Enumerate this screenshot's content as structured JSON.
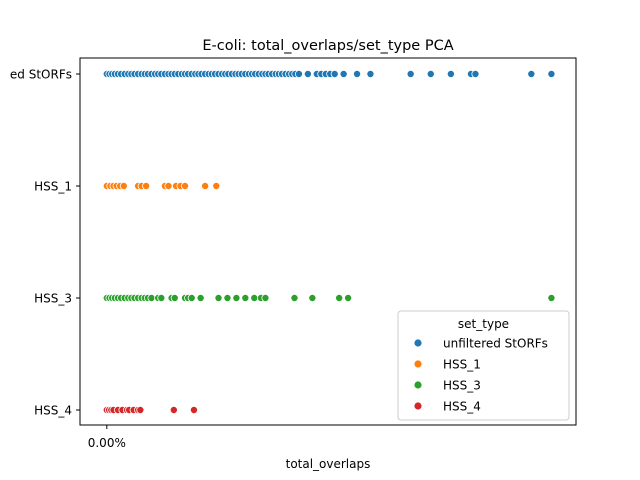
{
  "chart_data": {
    "type": "scatter",
    "title": "E-coli: total_overlaps/set_type PCA",
    "xlabel": "total_overlaps",
    "ylabel": "",
    "x_tick_labels": [
      "0.00%"
    ],
    "y_categories": [
      "unfiltered StORFs",
      "HSS_1",
      "HSS_3",
      "HSS_4"
    ],
    "y_tick_labels": [
      "ed StORFs",
      "HSS_1",
      "HSS_3",
      "HSS_4"
    ],
    "xlim": [
      -0.06,
      1.05
    ],
    "grid": false,
    "legend": {
      "title": "set_type",
      "placement": "lower right",
      "entries": [
        "unfiltered StORFs",
        "HSS_1",
        "HSS_3",
        "HSS_4"
      ]
    },
    "colors": {
      "unfiltered StORFs": "#1f77b4",
      "HSS_1": "#ff7f0e",
      "HSS_3": "#2ca02c",
      "HSS_4": "#d62728"
    },
    "series": [
      {
        "name": "unfiltered StORFs",
        "y": "unfiltered StORFs",
        "x": [
          0.0,
          0.006,
          0.012,
          0.018,
          0.025,
          0.032,
          0.04,
          0.048,
          0.055,
          0.062,
          0.07,
          0.078,
          0.085,
          0.092,
          0.1,
          0.108,
          0.115,
          0.122,
          0.13,
          0.138,
          0.145,
          0.152,
          0.16,
          0.168,
          0.175,
          0.182,
          0.19,
          0.198,
          0.205,
          0.212,
          0.22,
          0.228,
          0.235,
          0.242,
          0.25,
          0.258,
          0.265,
          0.272,
          0.28,
          0.288,
          0.295,
          0.302,
          0.31,
          0.318,
          0.325,
          0.332,
          0.34,
          0.348,
          0.355,
          0.362,
          0.37,
          0.378,
          0.385,
          0.392,
          0.4,
          0.408,
          0.415,
          0.422,
          0.43,
          0.45,
          0.47,
          0.48,
          0.49,
          0.5,
          0.51,
          0.53,
          0.56,
          0.59,
          0.68,
          0.725,
          0.77,
          0.815,
          0.825,
          0.95,
          0.995
        ]
      },
      {
        "name": "HSS_1",
        "y": "HSS_1",
        "x": [
          0.0,
          0.008,
          0.015,
          0.022,
          0.03,
          0.038,
          0.07,
          0.078,
          0.088,
          0.13,
          0.138,
          0.155,
          0.165,
          0.175,
          0.22,
          0.245
        ]
      },
      {
        "name": "HSS_3",
        "y": "HSS_3",
        "x": [
          0.0,
          0.006,
          0.012,
          0.018,
          0.025,
          0.032,
          0.04,
          0.048,
          0.055,
          0.062,
          0.07,
          0.078,
          0.085,
          0.092,
          0.1,
          0.115,
          0.122,
          0.145,
          0.152,
          0.175,
          0.182,
          0.19,
          0.21,
          0.25,
          0.27,
          0.29,
          0.31,
          0.33,
          0.345,
          0.355,
          0.42,
          0.46,
          0.52,
          0.54,
          0.995
        ]
      },
      {
        "name": "HSS_4",
        "y": "HSS_4",
        "x": [
          0.0,
          0.005,
          0.01,
          0.015,
          0.025,
          0.035,
          0.045,
          0.05,
          0.06,
          0.07,
          0.075,
          0.15,
          0.195
        ]
      }
    ]
  }
}
